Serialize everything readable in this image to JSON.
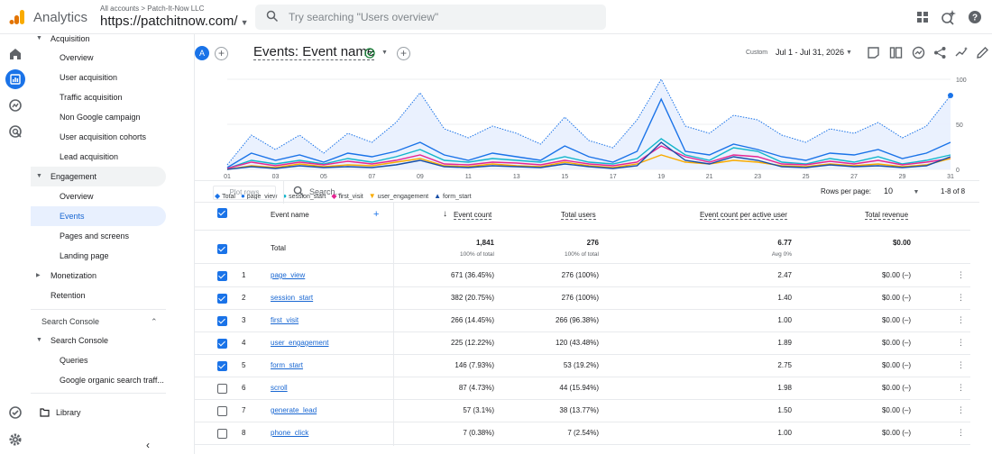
{
  "topbar": {
    "app_name": "Analytics",
    "breadcrumb": "All accounts > Patch-It-Now LLC",
    "property": "https://patchitnow.com/",
    "search_placeholder": "Try searching \"Users overview\""
  },
  "nav": {
    "items": [
      {
        "label": "Acquisition",
        "type": "group"
      },
      {
        "label": "Overview"
      },
      {
        "label": "User acquisition"
      },
      {
        "label": "Traffic acquisition"
      },
      {
        "label": "Non Google campaign"
      },
      {
        "label": "User acquisition cohorts"
      },
      {
        "label": "Lead acquisition"
      },
      {
        "label": "Engagement",
        "type": "group"
      },
      {
        "label": "Overview"
      },
      {
        "label": "Events",
        "selected": true
      },
      {
        "label": "Pages and screens"
      },
      {
        "label": "Landing page"
      },
      {
        "label": "Monetization",
        "type": "group"
      },
      {
        "label": "Retention",
        "type": "group"
      },
      {
        "label": "Search Console",
        "type": "section"
      },
      {
        "label": "Search Console",
        "type": "group"
      },
      {
        "label": "Queries"
      },
      {
        "label": "Google organic search traff..."
      }
    ],
    "library": "Library"
  },
  "header": {
    "avatar": "A",
    "title": "Events: Event name",
    "date_label": "Custom",
    "date_range": "Jul 1 - Jul 31, 2026"
  },
  "chart_data": {
    "type": "line",
    "x": [
      "01 Jul",
      "03",
      "05",
      "07",
      "09",
      "11",
      "13",
      "15",
      "17",
      "19",
      "21",
      "23",
      "25",
      "27",
      "29",
      "31"
    ],
    "y_ticks": [
      "100",
      "50",
      "0"
    ],
    "ylim": [
      0,
      100
    ],
    "series": [
      {
        "name": "Total",
        "color": "#1a73e8"
      },
      {
        "name": "page_view",
        "color": "#1a73e8"
      },
      {
        "name": "session_start",
        "color": "#12b5cb"
      },
      {
        "name": "first_visit",
        "color": "#e52592"
      },
      {
        "name": "user_engagement",
        "color": "#f9ab00"
      },
      {
        "name": "form_start",
        "color": "#174ea6"
      }
    ]
  },
  "table": {
    "plot_rows": "Plot rows",
    "search": "Search...",
    "rows_per_page_label": "Rows per page:",
    "rows_per_page": "10",
    "page_count": "1-8 of 8",
    "columns": [
      "Event name",
      "Event count",
      "Total users",
      "Event count per active user",
      "Total revenue"
    ],
    "total": {
      "label": "Total",
      "event_count": "1,841",
      "event_count_sub": "100% of total",
      "total_users": "276",
      "total_users_sub": "100% of total",
      "per_user": "6.77",
      "per_user_sub": "Avg 0%",
      "revenue": "$0.00"
    },
    "rows": [
      {
        "n": "1",
        "name": "page_view",
        "count": "671 (36.45%)",
        "users": "276 (100%)",
        "per": "2.47",
        "rev": "$0.00 (–)",
        "checked": true
      },
      {
        "n": "2",
        "name": "session_start",
        "count": "382 (20.75%)",
        "users": "276 (100%)",
        "per": "1.40",
        "rev": "$0.00 (–)",
        "checked": true
      },
      {
        "n": "3",
        "name": "first_visit",
        "count": "266 (14.45%)",
        "users": "266 (96.38%)",
        "per": "1.00",
        "rev": "$0.00 (–)",
        "checked": true
      },
      {
        "n": "4",
        "name": "user_engagement",
        "count": "225 (12.22%)",
        "users": "120 (43.48%)",
        "per": "1.89",
        "rev": "$0.00 (–)",
        "checked": true
      },
      {
        "n": "5",
        "name": "form_start",
        "count": "146 (7.93%)",
        "users": "53 (19.2%)",
        "per": "2.75",
        "rev": "$0.00 (–)",
        "checked": true
      },
      {
        "n": "6",
        "name": "scroll",
        "count": "87 (4.73%)",
        "users": "44 (15.94%)",
        "per": "1.98",
        "rev": "$0.00 (–)",
        "checked": false
      },
      {
        "n": "7",
        "name": "generate_lead",
        "count": "57 (3.1%)",
        "users": "38 (13.77%)",
        "per": "1.50",
        "rev": "$0.00 (–)",
        "checked": false
      },
      {
        "n": "8",
        "name": "phone_click",
        "count": "7 (0.38%)",
        "users": "7 (2.54%)",
        "per": "1.00",
        "rev": "$0.00 (–)",
        "checked": false
      }
    ]
  }
}
